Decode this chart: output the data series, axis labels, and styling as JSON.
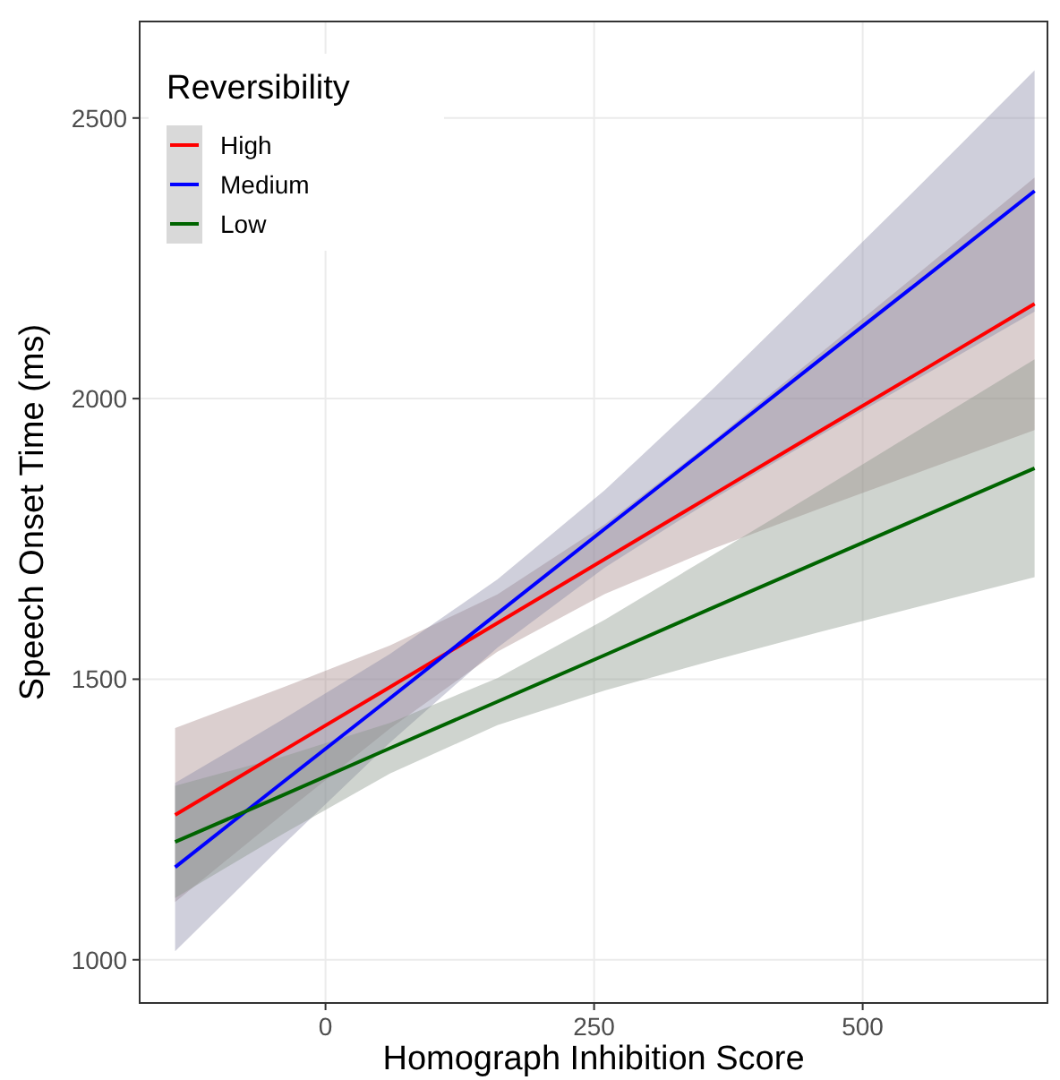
{
  "chart_data": {
    "type": "line",
    "xlabel": "Homograph Inhibition Score",
    "ylabel": "Speech Onset Time (ms)",
    "legend_title": "Reversibility",
    "legend": "top left",
    "grid": true,
    "xlim": [
      -173,
      672
    ],
    "ylim": [
      923,
      2672
    ],
    "xticks": [
      0,
      250,
      500
    ],
    "yticks": [
      1000,
      1500,
      2000,
      2500
    ],
    "x": [
      -140,
      -40,
      60,
      160,
      260,
      360,
      460,
      560,
      660
    ],
    "series": [
      {
        "name": "High",
        "color": "#ff0000",
        "values": [
          1258,
          1372,
          1486,
          1600,
          1714,
          1828,
          1942,
          2055,
          2169
        ],
        "lower": [
          1103,
          1259,
          1412,
          1549,
          1652,
          1732,
          1804,
          1874,
          1944
        ],
        "upper": [
          1413,
          1485,
          1560,
          1651,
          1776,
          1924,
          2080,
          2236,
          2394
        ]
      },
      {
        "name": "Medium",
        "color": "#0000ff",
        "values": [
          1165,
          1316,
          1466,
          1617,
          1768,
          1918,
          2069,
          2219,
          2370
        ],
        "lower": [
          1015,
          1204,
          1387,
          1556,
          1699,
          1820,
          1934,
          2045,
          2155
        ],
        "upper": [
          1315,
          1428,
          1545,
          1678,
          1837,
          2016,
          2204,
          2393,
          2585
        ]
      },
      {
        "name": "Low",
        "color": "#006400",
        "values": [
          1210,
          1293,
          1377,
          1460,
          1543,
          1627,
          1710,
          1793,
          1876
        ],
        "lower": [
          1110,
          1224,
          1332,
          1418,
          1480,
          1533,
          1584,
          1633,
          1682
        ],
        "upper": [
          1310,
          1362,
          1422,
          1502,
          1606,
          1721,
          1836,
          1953,
          2070
        ]
      }
    ]
  }
}
